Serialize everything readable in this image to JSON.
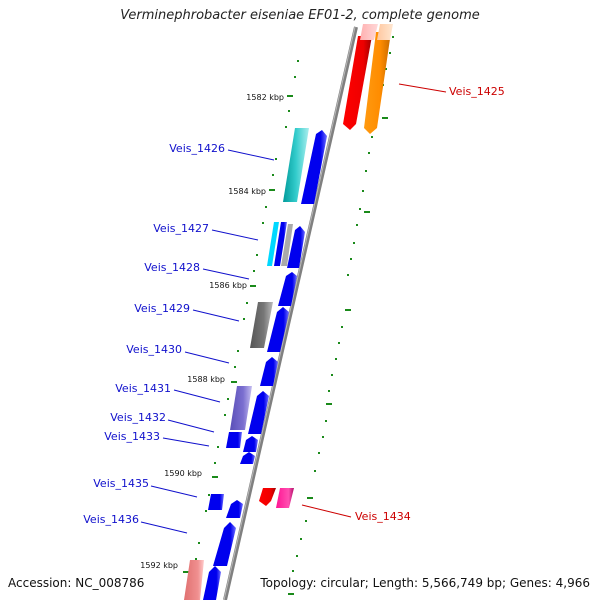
{
  "title": "Verminephrobacter eiseniae EF01-2, complete genome",
  "footer": {
    "accession": "Accession: NC_008786",
    "summary": "Topology: circular; Length: 5,566,749 bp; Genes: 4,966"
  },
  "colors": {
    "backbone": "#808080",
    "tick": "#1a8a1a",
    "label_forward": "#1010cc",
    "label_reverse": "#cc0000",
    "forward_gene": "#0000ee",
    "reverse_gene": "#ee0000"
  },
  "kbp_ticks": [
    {
      "kbp": 1582,
      "label": "1582 kbp"
    },
    {
      "kbp": 1584,
      "label": "1584 kbp"
    },
    {
      "kbp": 1586,
      "label": "1586 kbp"
    },
    {
      "kbp": 1588,
      "label": "1588 kbp"
    },
    {
      "kbp": 1590,
      "label": "1590 kbp"
    },
    {
      "kbp": 1592,
      "label": "1592 kbp"
    }
  ],
  "gene_labels": [
    {
      "text": "Veis_1425",
      "strand": "reverse"
    },
    {
      "text": "Veis_1426",
      "strand": "forward"
    },
    {
      "text": "Veis_1427",
      "strand": "forward"
    },
    {
      "text": "Veis_1428",
      "strand": "forward"
    },
    {
      "text": "Veis_1429",
      "strand": "forward"
    },
    {
      "text": "Veis_1430",
      "strand": "forward"
    },
    {
      "text": "Veis_1431",
      "strand": "forward"
    },
    {
      "text": "Veis_1432",
      "strand": "forward"
    },
    {
      "text": "Veis_1433",
      "strand": "forward"
    },
    {
      "text": "Veis_1434",
      "strand": "reverse"
    },
    {
      "text": "Veis_1435",
      "strand": "forward"
    },
    {
      "text": "Veis_1436",
      "strand": "forward"
    }
  ]
}
